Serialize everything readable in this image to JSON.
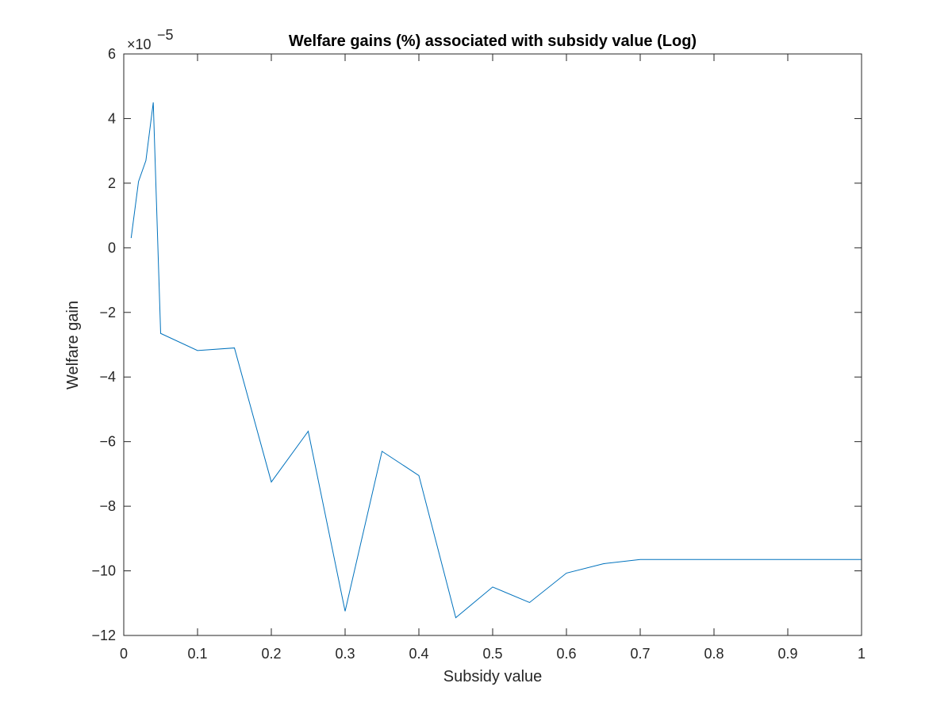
{
  "chart_data": {
    "type": "line",
    "title": "Welfare gains (%) associated with subsidy value (Log)",
    "xlabel": "Subsidy value",
    "ylabel": "Welfare gain",
    "y_exponent": {
      "base": "×10",
      "power": "−5"
    },
    "xlim": [
      0,
      1
    ],
    "ylim": [
      -12,
      6
    ],
    "x_ticks": [
      0,
      0.1,
      0.2,
      0.3,
      0.4,
      0.5,
      0.6,
      0.7,
      0.8,
      0.9,
      1
    ],
    "x_tick_labels": [
      "0",
      "0.1",
      "0.2",
      "0.3",
      "0.4",
      "0.5",
      "0.6",
      "0.7",
      "0.8",
      "0.9",
      "1"
    ],
    "y_ticks": [
      -12,
      -10,
      -8,
      -6,
      -4,
      -2,
      0,
      2,
      4,
      6
    ],
    "y_tick_labels": [
      "−12",
      "−10",
      "−8",
      "−6",
      "−4",
      "−2",
      "0",
      "2",
      "4",
      "6"
    ],
    "grid": false,
    "series": [
      {
        "color": "#0072BD",
        "x": [
          0.01,
          0.02,
          0.03,
          0.04,
          0.05,
          0.1,
          0.15,
          0.2,
          0.25,
          0.3,
          0.35,
          0.4,
          0.45,
          0.5,
          0.55,
          0.6,
          0.65,
          0.7,
          0.75,
          0.8,
          0.85,
          0.9,
          0.95,
          1.0
        ],
        "y": [
          0.3,
          2.05,
          2.7,
          4.5,
          -2.65,
          -3.18,
          -3.1,
          -7.25,
          -5.68,
          -11.25,
          -6.3,
          -7.05,
          -11.45,
          -10.5,
          -10.98,
          -10.07,
          -9.78,
          -9.65,
          -9.65,
          -9.65,
          -9.65,
          -9.65,
          -9.65,
          -9.65
        ]
      }
    ]
  }
}
